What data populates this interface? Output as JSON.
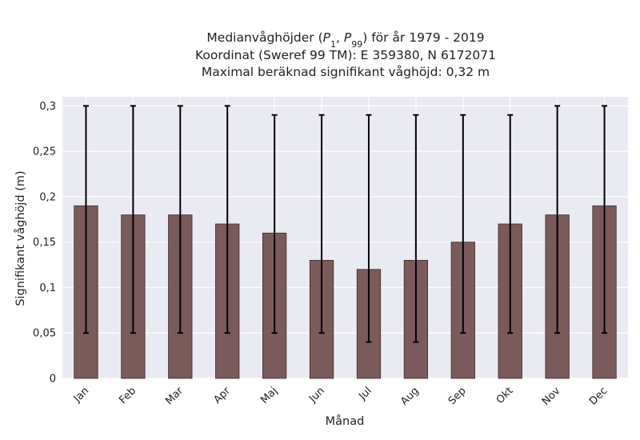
{
  "chart_data": {
    "type": "bar",
    "title_lines": [
      "Medianvåghöjder (P1, P99) för år 1979 - 2019",
      "Koordinat (Sweref 99 TM): E 359380, N 6172071",
      "Maximal beräknad signifikant våghöjd: 0,32 m"
    ],
    "xlabel": "Månad",
    "ylabel": "Signifikant våghöjd (m)",
    "categories": [
      "Jan",
      "Feb",
      "Mar",
      "Apr",
      "Maj",
      "Jun",
      "Jul",
      "Aug",
      "Sep",
      "Okt",
      "Nov",
      "Dec"
    ],
    "values": [
      0.19,
      0.18,
      0.18,
      0.17,
      0.16,
      0.13,
      0.12,
      0.13,
      0.15,
      0.17,
      0.18,
      0.19
    ],
    "error_low": [
      0.05,
      0.05,
      0.05,
      0.05,
      0.05,
      0.05,
      0.04,
      0.04,
      0.05,
      0.05,
      0.05,
      0.05
    ],
    "error_high": [
      0.3,
      0.3,
      0.3,
      0.3,
      0.29,
      0.29,
      0.29,
      0.29,
      0.29,
      0.29,
      0.3,
      0.3
    ],
    "ylim": [
      0,
      0.31
    ],
    "yticks": [
      0,
      0.05,
      0.1,
      0.15,
      0.2,
      0.25,
      0.3
    ],
    "ytick_labels": [
      "0",
      "0,05",
      "0,1",
      "0,15",
      "0,2",
      "0,25",
      "0,3"
    ],
    "grid": true,
    "colors": {
      "bar": "#7b5a5b",
      "bar_edge": "#3d2b2b",
      "plot_background": "#eaeaf2",
      "grid": "#ffffff",
      "error_bar": "#000000"
    }
  }
}
